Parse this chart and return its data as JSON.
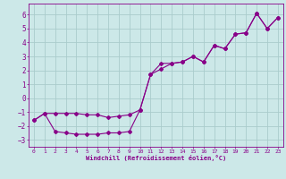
{
  "xlabel": "Windchill (Refroidissement éolien,°C)",
  "xlim": [
    -0.5,
    23.5
  ],
  "ylim": [
    -3.5,
    6.8
  ],
  "xticks": [
    0,
    1,
    2,
    3,
    4,
    5,
    6,
    7,
    8,
    9,
    10,
    11,
    12,
    13,
    14,
    15,
    16,
    17,
    18,
    19,
    20,
    21,
    22,
    23
  ],
  "yticks": [
    -3,
    -2,
    -1,
    0,
    1,
    2,
    3,
    4,
    5,
    6
  ],
  "bg_color": "#cce8e8",
  "grid_color": "#aacccc",
  "line_color": "#880088",
  "line1_x": [
    0,
    1,
    2,
    3,
    4,
    5,
    6,
    7,
    8,
    9,
    10,
    11,
    12,
    13,
    14,
    15,
    16,
    17,
    18,
    19,
    20,
    21,
    22,
    23
  ],
  "line1_y": [
    -1.6,
    -1.1,
    -2.4,
    -2.5,
    -2.6,
    -2.6,
    -2.6,
    -2.5,
    -2.5,
    -2.4,
    -0.85,
    1.7,
    2.5,
    2.5,
    2.6,
    3.0,
    2.6,
    3.8,
    3.55,
    4.6,
    4.7,
    6.1,
    5.0,
    5.8
  ],
  "line2_x": [
    0,
    1,
    2,
    3,
    4,
    5,
    6,
    7,
    8,
    9,
    10,
    11,
    12,
    13,
    14,
    15,
    16,
    17,
    18,
    19,
    20,
    21,
    22,
    23
  ],
  "line2_y": [
    -1.6,
    -1.1,
    -1.1,
    -1.1,
    -1.1,
    -1.2,
    -1.2,
    -1.4,
    -1.3,
    -1.2,
    -0.85,
    1.7,
    2.1,
    2.5,
    2.6,
    3.0,
    2.6,
    3.8,
    3.55,
    4.6,
    4.7,
    6.1,
    5.0,
    5.8
  ]
}
